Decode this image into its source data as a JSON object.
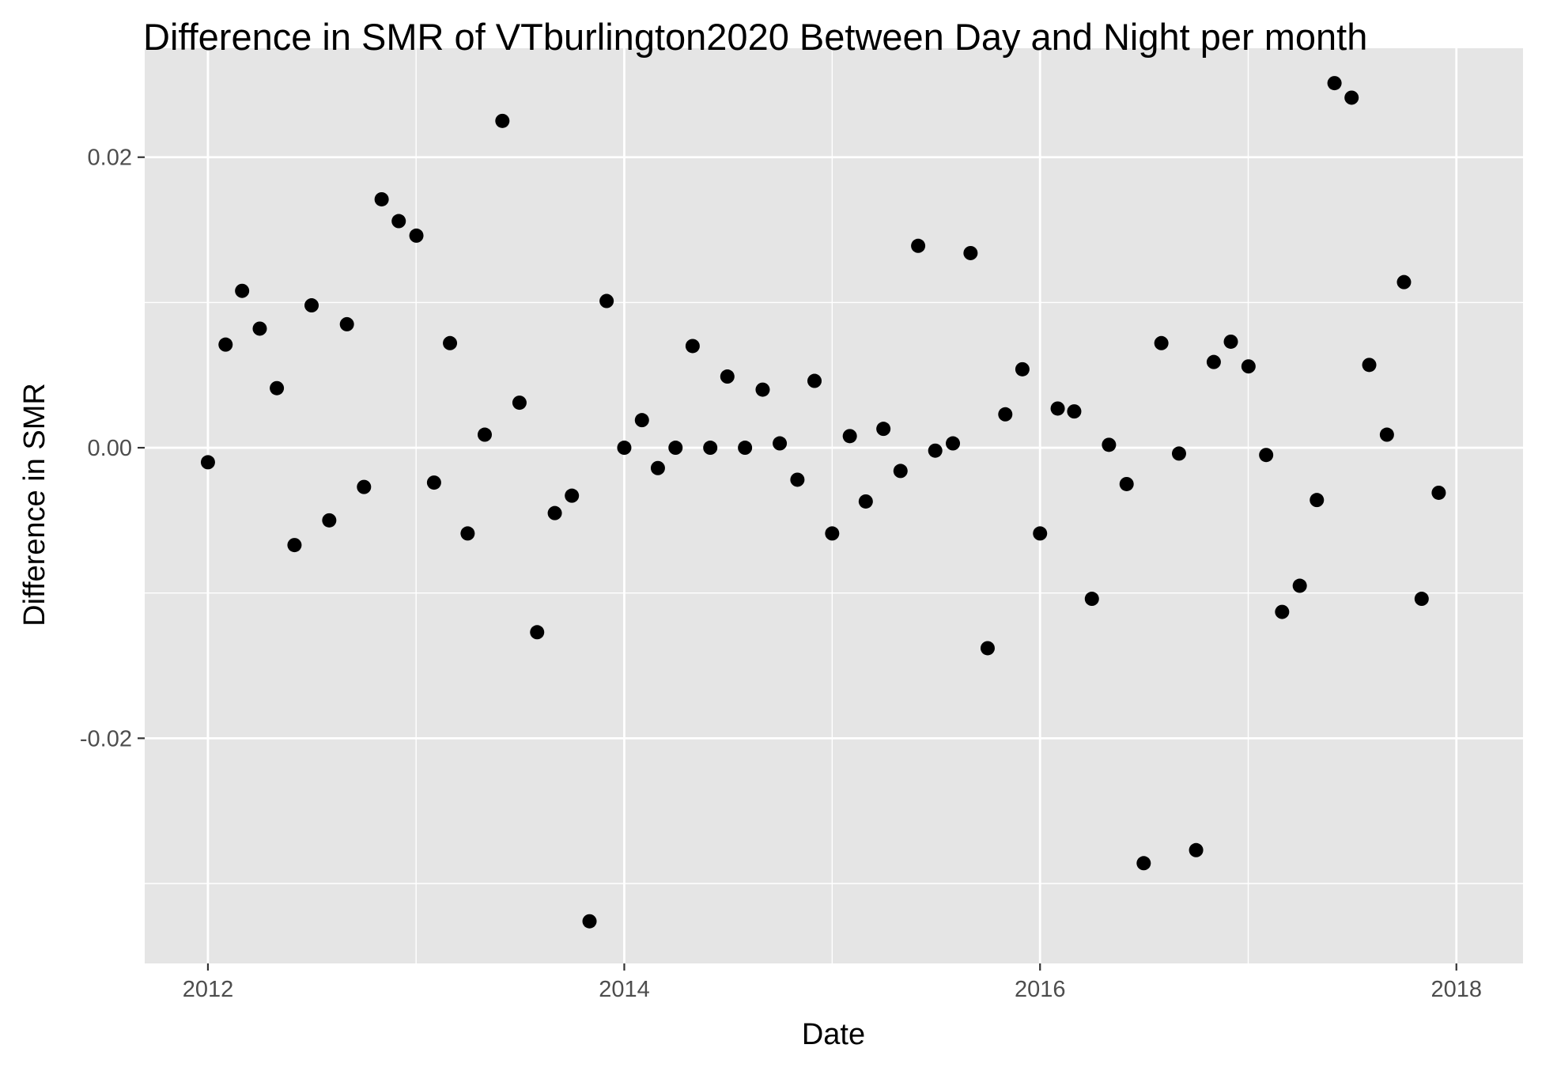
{
  "chart_data": {
    "type": "scatter",
    "title": "Difference in SMR of VTburlington2020 Between Day and Night per month",
    "xlabel": "Date",
    "ylabel": "Difference in SMR",
    "x_ticks": [
      "2012",
      "2014",
      "2016",
      "2018"
    ],
    "y_ticks": [
      "-0.02",
      "0.00",
      "0.02"
    ],
    "xlim": [
      "2011-09-12",
      "2018-04-28"
    ],
    "ylim": [
      -0.0355,
      0.0275
    ],
    "grid": true,
    "legend": "none",
    "colors": {
      "panel": "#e5e5e5",
      "grid": "#ffffff",
      "point": "#000000"
    },
    "points": [
      {
        "x": "2012-01-01",
        "y": -0.001
      },
      {
        "x": "2012-02-01",
        "y": 0.0071
      },
      {
        "x": "2012-03-01",
        "y": 0.0108
      },
      {
        "x": "2012-04-01",
        "y": 0.0082
      },
      {
        "x": "2012-05-01",
        "y": 0.0041
      },
      {
        "x": "2012-06-01",
        "y": -0.0067
      },
      {
        "x": "2012-07-01",
        "y": 0.0098
      },
      {
        "x": "2012-08-01",
        "y": -0.005
      },
      {
        "x": "2012-09-01",
        "y": 0.0085
      },
      {
        "x": "2012-10-01",
        "y": -0.0027
      },
      {
        "x": "2012-11-01",
        "y": 0.0171
      },
      {
        "x": "2012-12-01",
        "y": 0.0156
      },
      {
        "x": "2013-01-01",
        "y": 0.0146
      },
      {
        "x": "2013-02-01",
        "y": -0.0024
      },
      {
        "x": "2013-03-01",
        "y": 0.0072
      },
      {
        "x": "2013-04-01",
        "y": -0.0059
      },
      {
        "x": "2013-05-01",
        "y": 0.0009
      },
      {
        "x": "2013-06-01",
        "y": 0.0225
      },
      {
        "x": "2013-07-01",
        "y": 0.0031
      },
      {
        "x": "2013-08-01",
        "y": -0.0127
      },
      {
        "x": "2013-09-01",
        "y": -0.0045
      },
      {
        "x": "2013-10-01",
        "y": -0.0033
      },
      {
        "x": "2013-11-01",
        "y": -0.0326
      },
      {
        "x": "2013-12-01",
        "y": 0.0101
      },
      {
        "x": "2014-01-01",
        "y": 0.0
      },
      {
        "x": "2014-02-01",
        "y": 0.0019
      },
      {
        "x": "2014-03-01",
        "y": -0.0014
      },
      {
        "x": "2014-04-01",
        "y": 0.0
      },
      {
        "x": "2014-05-01",
        "y": 0.007
      },
      {
        "x": "2014-06-01",
        "y": 0.0
      },
      {
        "x": "2014-07-01",
        "y": 0.0049
      },
      {
        "x": "2014-08-01",
        "y": 0.0
      },
      {
        "x": "2014-09-01",
        "y": 0.004
      },
      {
        "x": "2014-10-01",
        "y": 0.0003
      },
      {
        "x": "2014-11-01",
        "y": -0.0022
      },
      {
        "x": "2014-12-01",
        "y": 0.0046
      },
      {
        "x": "2015-01-01",
        "y": -0.0059
      },
      {
        "x": "2015-02-01",
        "y": 0.0008
      },
      {
        "x": "2015-03-01",
        "y": -0.0037
      },
      {
        "x": "2015-04-01",
        "y": 0.0013
      },
      {
        "x": "2015-05-01",
        "y": -0.0016
      },
      {
        "x": "2015-06-01",
        "y": 0.0139
      },
      {
        "x": "2015-07-01",
        "y": -0.0002
      },
      {
        "x": "2015-08-01",
        "y": 0.0003
      },
      {
        "x": "2015-09-01",
        "y": 0.0134
      },
      {
        "x": "2015-10-01",
        "y": -0.0138
      },
      {
        "x": "2015-11-01",
        "y": 0.0023
      },
      {
        "x": "2015-12-01",
        "y": 0.0054
      },
      {
        "x": "2016-01-01",
        "y": -0.0059
      },
      {
        "x": "2016-02-01",
        "y": 0.0027
      },
      {
        "x": "2016-03-01",
        "y": 0.0025
      },
      {
        "x": "2016-04-01",
        "y": -0.0104
      },
      {
        "x": "2016-05-01",
        "y": 0.0002
      },
      {
        "x": "2016-06-01",
        "y": -0.0025
      },
      {
        "x": "2016-07-01",
        "y": -0.0286
      },
      {
        "x": "2016-08-01",
        "y": 0.0072
      },
      {
        "x": "2016-09-01",
        "y": -0.0004
      },
      {
        "x": "2016-10-01",
        "y": -0.0277
      },
      {
        "x": "2016-11-01",
        "y": 0.0059
      },
      {
        "x": "2016-12-01",
        "y": 0.0073
      },
      {
        "x": "2017-01-01",
        "y": 0.0056
      },
      {
        "x": "2017-02-01",
        "y": -0.0005
      },
      {
        "x": "2017-03-01",
        "y": -0.0113
      },
      {
        "x": "2017-04-01",
        "y": -0.0095
      },
      {
        "x": "2017-05-01",
        "y": -0.0036
      },
      {
        "x": "2017-06-01",
        "y": 0.0251
      },
      {
        "x": "2017-07-01",
        "y": 0.0241
      },
      {
        "x": "2017-08-01",
        "y": 0.0057
      },
      {
        "x": "2017-09-01",
        "y": 0.0009
      },
      {
        "x": "2017-10-01",
        "y": 0.0114
      },
      {
        "x": "2017-11-01",
        "y": -0.0104
      },
      {
        "x": "2017-12-01",
        "y": -0.0031
      }
    ]
  }
}
